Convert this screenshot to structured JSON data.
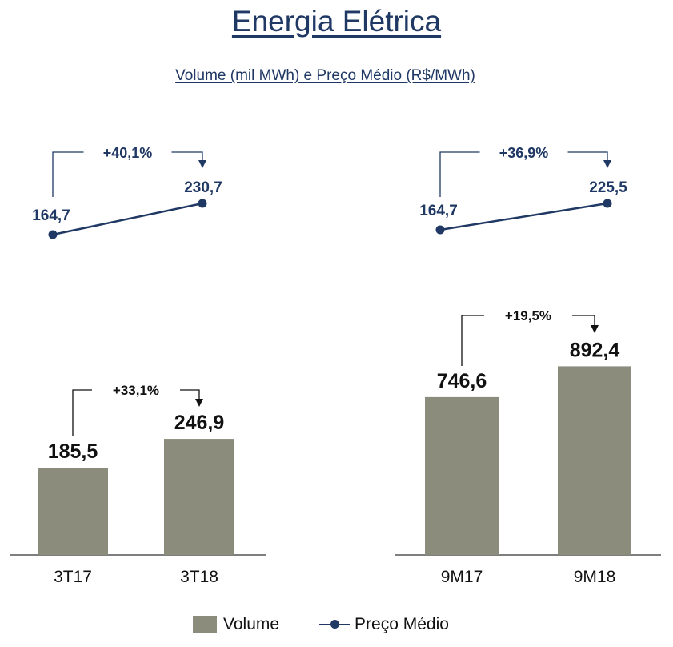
{
  "title": "Energia Elétrica",
  "subtitle": "Volume (mil MWh) e Preço Médio (R$/MWh)",
  "legend": {
    "volume_label": "Volume",
    "price_label": "Preço Médio"
  },
  "colors": {
    "bar": "#8c8c7c",
    "line": "#1f3864",
    "axis": "#555555"
  },
  "chart_data": [
    {
      "type": "bar",
      "series_name": "Volume",
      "categories": [
        "3T17",
        "3T18"
      ],
      "values": [
        185.5,
        246.9
      ],
      "value_labels": [
        "185,5",
        "246,9"
      ],
      "change_label": "+33,1%"
    },
    {
      "type": "line",
      "series_name": "Preço Médio",
      "categories": [
        "3T17",
        "3T18"
      ],
      "values": [
        164.7,
        230.7
      ],
      "value_labels": [
        "164,7",
        "230,7"
      ],
      "change_label": "+40,1%"
    },
    {
      "type": "bar",
      "series_name": "Volume",
      "categories": [
        "9M17",
        "9M18"
      ],
      "values": [
        746.6,
        892.4
      ],
      "value_labels": [
        "746,6",
        "892,4"
      ],
      "change_label": "+19,5%"
    },
    {
      "type": "line",
      "series_name": "Preço Médio",
      "categories": [
        "9M17",
        "9M18"
      ],
      "values": [
        164.7,
        225.5
      ],
      "value_labels": [
        "164,7",
        "225,5"
      ],
      "change_label": "+36,9%"
    }
  ]
}
